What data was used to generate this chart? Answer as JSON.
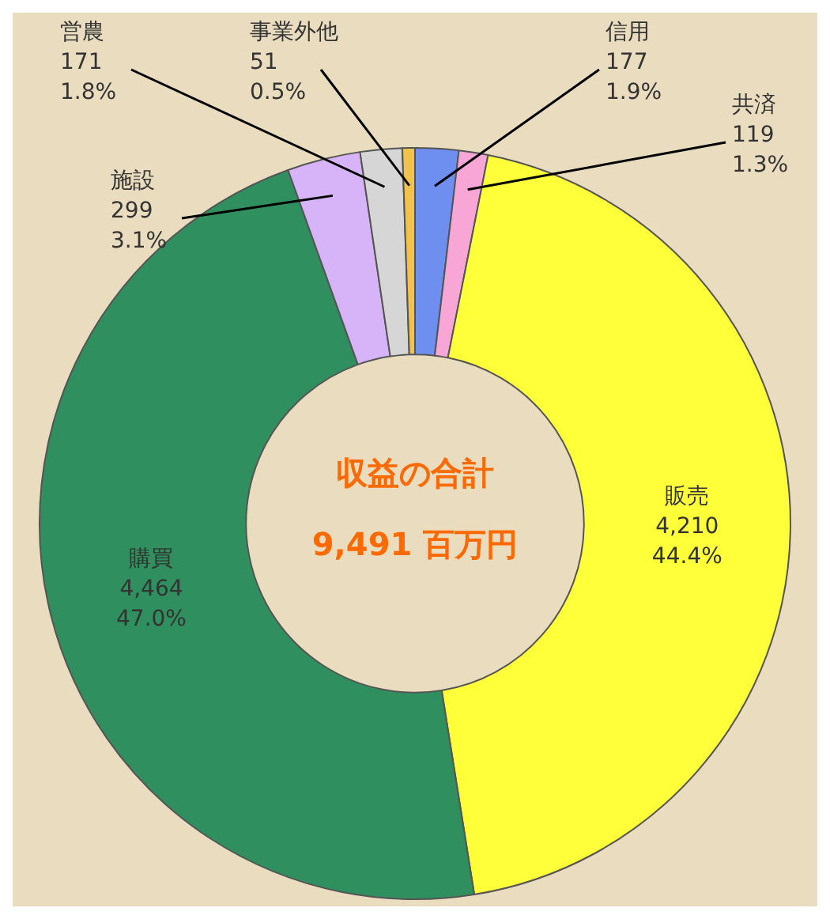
{
  "chart_data": {
    "type": "donut",
    "title": "収益の合計",
    "subtitle": "9,491 百万円",
    "categories": [
      "信用",
      "共済",
      "販売",
      "購買",
      "施設",
      "営農",
      "事業外他"
    ],
    "values": [
      177,
      119,
      4210,
      4464,
      299,
      171,
      51
    ],
    "colors": [
      "#6f8ff0",
      "#f7a6d6",
      "#ffff3a",
      "#2f8f5e",
      "#d7b3f7",
      "#d6d6d6",
      "#f2c24a"
    ],
    "value_labels": [
      "177\n1.9%",
      "119\n1.3%",
      "4,210\n44.4%",
      "4,464\n47.0%",
      "299\n3.1%",
      "171\n1.8%",
      "51\n0.5%"
    ],
    "legend": false
  }
}
